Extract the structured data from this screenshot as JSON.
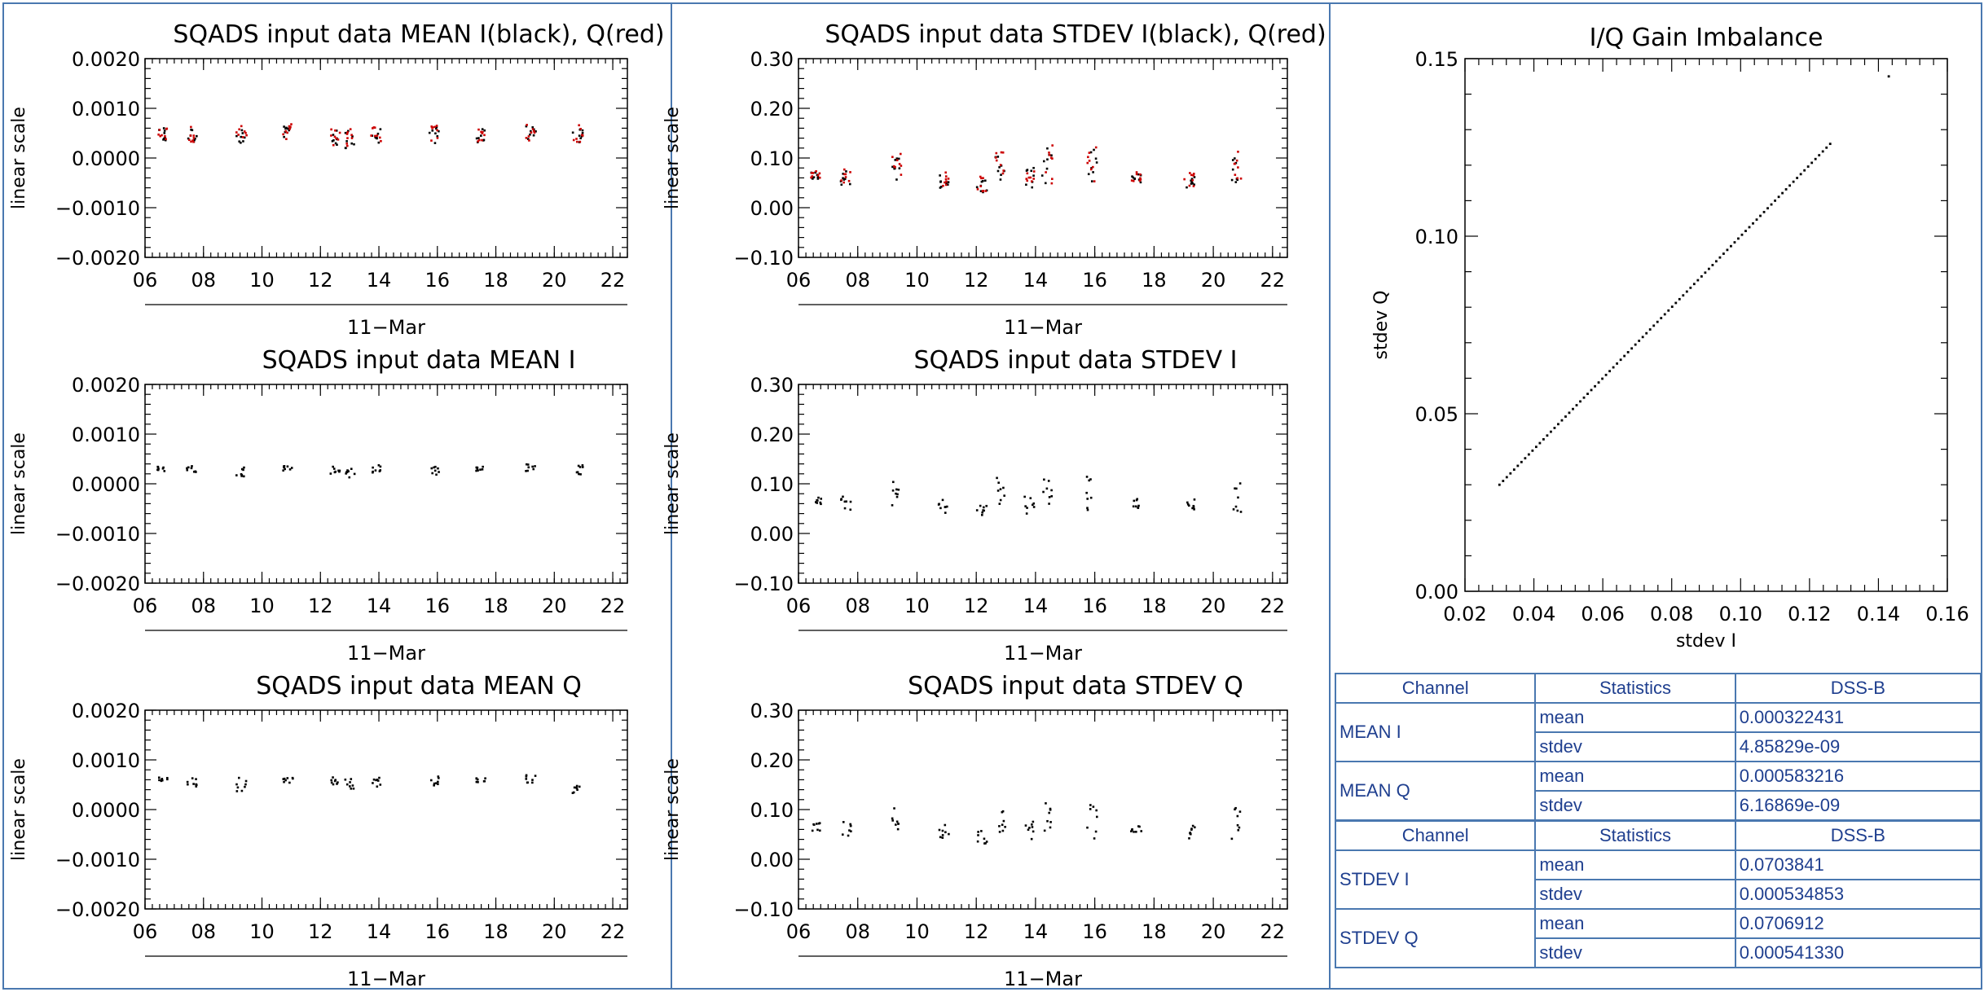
{
  "chart_data": [
    {
      "id": "mean_iq",
      "type": "scatter",
      "title": "SQADS input data MEAN I(black), Q(red)",
      "ylabel": "linear scale",
      "xlabel": "11−Mar",
      "ylim": [
        -0.002,
        0.002
      ],
      "yticks": [
        -0.002,
        -0.001,
        0.0,
        0.001,
        0.002
      ],
      "yticklabels": [
        "−0.0020",
        "−0.0010",
        "0.0000",
        "0.0010",
        "0.0020"
      ],
      "xlim": [
        6,
        22.5
      ],
      "xticks": [
        6,
        8,
        10,
        12,
        14,
        16,
        18,
        20,
        22
      ],
      "xticklabels": [
        "06",
        "08",
        "10",
        "12",
        "14",
        "16",
        "18",
        "20",
        "22"
      ],
      "clusters": [
        {
          "x": 6.6,
          "center": 0.00045,
          "spread": 0.00015
        },
        {
          "x": 7.6,
          "center": 0.00045,
          "spread": 0.00016
        },
        {
          "x": 9.3,
          "center": 0.00042,
          "spread": 0.0002
        },
        {
          "x": 10.9,
          "center": 0.0005,
          "spread": 0.00015
        },
        {
          "x": 12.5,
          "center": 0.0004,
          "spread": 0.00018
        },
        {
          "x": 13.0,
          "center": 0.00035,
          "spread": 0.0002
        },
        {
          "x": 13.9,
          "center": 0.00045,
          "spread": 0.00015
        },
        {
          "x": 15.9,
          "center": 0.00045,
          "spread": 0.00018
        },
        {
          "x": 17.5,
          "center": 0.00045,
          "spread": 0.00016
        },
        {
          "x": 19.2,
          "center": 0.00048,
          "spread": 0.00016
        },
        {
          "x": 20.8,
          "center": 0.00045,
          "spread": 0.00018
        }
      ],
      "colors": [
        "#000000",
        "#cc0000"
      ]
    },
    {
      "id": "stdev_iq",
      "type": "scatter",
      "title": "SQADS input data STDEV I(black), Q(red)",
      "ylabel": "linear scale",
      "xlabel": "11−Mar",
      "ylim": [
        -0.1,
        0.3
      ],
      "yticks": [
        -0.1,
        0.0,
        0.1,
        0.2,
        0.3
      ],
      "yticklabels": [
        "−0.10",
        "0.00",
        "0.10",
        "0.20",
        "0.30"
      ],
      "xlim": [
        6,
        22.5
      ],
      "xticks": [
        6,
        8,
        10,
        12,
        14,
        16,
        18,
        20,
        22
      ],
      "xticklabels": [
        "06",
        "08",
        "10",
        "12",
        "14",
        "16",
        "18",
        "20",
        "22"
      ],
      "clusters": [
        {
          "x": 6.6,
          "center": 0.065,
          "spread": 0.008
        },
        {
          "x": 7.6,
          "center": 0.06,
          "spread": 0.015
        },
        {
          "x": 9.3,
          "center": 0.08,
          "spread": 0.025
        },
        {
          "x": 10.9,
          "center": 0.055,
          "spread": 0.015
        },
        {
          "x": 12.2,
          "center": 0.045,
          "spread": 0.015
        },
        {
          "x": 12.8,
          "center": 0.085,
          "spread": 0.03
        },
        {
          "x": 13.8,
          "center": 0.06,
          "spread": 0.02
        },
        {
          "x": 14.4,
          "center": 0.08,
          "spread": 0.04
        },
        {
          "x": 15.9,
          "center": 0.08,
          "spread": 0.04
        },
        {
          "x": 17.4,
          "center": 0.06,
          "spread": 0.01
        },
        {
          "x": 19.2,
          "center": 0.055,
          "spread": 0.015
        },
        {
          "x": 20.8,
          "center": 0.075,
          "spread": 0.035
        }
      ],
      "colors": [
        "#000000",
        "#cc0000"
      ]
    },
    {
      "id": "mean_i",
      "type": "scatter",
      "title": "SQADS input data MEAN I",
      "ylabel": "linear scale",
      "xlabel": "11−Mar",
      "ylim": [
        -0.002,
        0.002
      ],
      "yticks": [
        -0.002,
        -0.001,
        0.0,
        0.001,
        0.002
      ],
      "yticklabels": [
        "−0.0020",
        "−0.0010",
        "0.0000",
        "0.0010",
        "0.0020"
      ],
      "xlim": [
        6,
        22.5
      ],
      "xticks": [
        6,
        8,
        10,
        12,
        14,
        16,
        18,
        20,
        22
      ],
      "xticklabels": [
        "06",
        "08",
        "10",
        "12",
        "14",
        "16",
        "18",
        "20",
        "22"
      ],
      "clusters": [
        {
          "x": 6.6,
          "center": 0.0003,
          "spread": 5e-05
        },
        {
          "x": 7.6,
          "center": 0.0003,
          "spread": 8e-05
        },
        {
          "x": 9.3,
          "center": 0.00025,
          "spread": 0.0001
        },
        {
          "x": 10.9,
          "center": 0.00032,
          "spread": 6e-05
        },
        {
          "x": 12.5,
          "center": 0.00028,
          "spread": 8e-05
        },
        {
          "x": 13.0,
          "center": 0.00022,
          "spread": 0.0001
        },
        {
          "x": 13.9,
          "center": 0.0003,
          "spread": 8e-05
        },
        {
          "x": 15.9,
          "center": 0.00028,
          "spread": 0.0001
        },
        {
          "x": 17.5,
          "center": 0.0003,
          "spread": 5e-05
        },
        {
          "x": 19.2,
          "center": 0.00033,
          "spread": 8e-05
        },
        {
          "x": 20.8,
          "center": 0.00028,
          "spread": 0.0001
        }
      ],
      "colors": [
        "#000000"
      ]
    },
    {
      "id": "stdev_i",
      "type": "scatter",
      "title": "SQADS input data STDEV I",
      "ylabel": "linear scale",
      "xlabel": "11−Mar",
      "ylim": [
        -0.1,
        0.3
      ],
      "yticks": [
        -0.1,
        0.0,
        0.1,
        0.2,
        0.3
      ],
      "yticklabels": [
        "−0.10",
        "0.00",
        "0.10",
        "0.20",
        "0.30"
      ],
      "xlim": [
        6,
        22.5
      ],
      "xticks": [
        6,
        8,
        10,
        12,
        14,
        16,
        18,
        20,
        22
      ],
      "xticklabels": [
        "06",
        "08",
        "10",
        "12",
        "14",
        "16",
        "18",
        "20",
        "22"
      ],
      "clusters": [
        {
          "x": 6.6,
          "center": 0.065,
          "spread": 0.008
        },
        {
          "x": 7.6,
          "center": 0.06,
          "spread": 0.015
        },
        {
          "x": 9.3,
          "center": 0.08,
          "spread": 0.025
        },
        {
          "x": 10.9,
          "center": 0.055,
          "spread": 0.015
        },
        {
          "x": 12.2,
          "center": 0.045,
          "spread": 0.015
        },
        {
          "x": 12.8,
          "center": 0.085,
          "spread": 0.03
        },
        {
          "x": 13.8,
          "center": 0.06,
          "spread": 0.02
        },
        {
          "x": 14.4,
          "center": 0.08,
          "spread": 0.04
        },
        {
          "x": 15.9,
          "center": 0.08,
          "spread": 0.04
        },
        {
          "x": 17.4,
          "center": 0.06,
          "spread": 0.01
        },
        {
          "x": 19.2,
          "center": 0.055,
          "spread": 0.015
        },
        {
          "x": 20.8,
          "center": 0.075,
          "spread": 0.035
        }
      ],
      "colors": [
        "#000000"
      ]
    },
    {
      "id": "mean_q",
      "type": "scatter",
      "title": "SQADS input data MEAN Q",
      "ylabel": "linear scale",
      "xlabel": "11−Mar",
      "ylim": [
        -0.002,
        0.002
      ],
      "yticks": [
        -0.002,
        -0.001,
        0.0,
        0.001,
        0.002
      ],
      "yticklabels": [
        "−0.0020",
        "−0.0010",
        "0.0000",
        "0.0010",
        "0.0020"
      ],
      "xlim": [
        6,
        22.5
      ],
      "xticks": [
        6,
        8,
        10,
        12,
        14,
        16,
        18,
        20,
        22
      ],
      "xticklabels": [
        "06",
        "08",
        "10",
        "12",
        "14",
        "16",
        "18",
        "20",
        "22"
      ],
      "clusters": [
        {
          "x": 6.6,
          "center": 0.0006,
          "spread": 6e-05
        },
        {
          "x": 7.6,
          "center": 0.00055,
          "spread": 0.0001
        },
        {
          "x": 9.3,
          "center": 0.0005,
          "spread": 0.00015
        },
        {
          "x": 10.9,
          "center": 0.0006,
          "spread": 6e-05
        },
        {
          "x": 12.5,
          "center": 0.00058,
          "spread": 8e-05
        },
        {
          "x": 13.0,
          "center": 0.00052,
          "spread": 0.0001
        },
        {
          "x": 13.9,
          "center": 0.00055,
          "spread": 0.0001
        },
        {
          "x": 15.9,
          "center": 0.00058,
          "spread": 0.0001
        },
        {
          "x": 17.5,
          "center": 0.0006,
          "spread": 5e-05
        },
        {
          "x": 19.2,
          "center": 0.00062,
          "spread": 8e-05
        },
        {
          "x": 20.8,
          "center": 0.00045,
          "spread": 0.00018
        }
      ],
      "colors": [
        "#000000"
      ]
    },
    {
      "id": "stdev_q",
      "type": "scatter",
      "title": "SQADS input data STDEV Q",
      "ylabel": "linear scale",
      "xlabel": "11−Mar",
      "ylim": [
        -0.1,
        0.3
      ],
      "yticks": [
        -0.1,
        0.0,
        0.1,
        0.2,
        0.3
      ],
      "yticklabels": [
        "−0.10",
        "0.00",
        "0.10",
        "0.20",
        "0.30"
      ],
      "xlim": [
        6,
        22.5
      ],
      "xticks": [
        6,
        8,
        10,
        12,
        14,
        16,
        18,
        20,
        22
      ],
      "xticklabels": [
        "06",
        "08",
        "10",
        "12",
        "14",
        "16",
        "18",
        "20",
        "22"
      ],
      "clusters": [
        {
          "x": 6.6,
          "center": 0.065,
          "spread": 0.008
        },
        {
          "x": 7.6,
          "center": 0.06,
          "spread": 0.015
        },
        {
          "x": 9.3,
          "center": 0.08,
          "spread": 0.025
        },
        {
          "x": 10.9,
          "center": 0.055,
          "spread": 0.015
        },
        {
          "x": 12.2,
          "center": 0.045,
          "spread": 0.015
        },
        {
          "x": 12.8,
          "center": 0.085,
          "spread": 0.03
        },
        {
          "x": 13.8,
          "center": 0.06,
          "spread": 0.02
        },
        {
          "x": 14.4,
          "center": 0.08,
          "spread": 0.04
        },
        {
          "x": 15.9,
          "center": 0.08,
          "spread": 0.04
        },
        {
          "x": 17.4,
          "center": 0.06,
          "spread": 0.01
        },
        {
          "x": 19.2,
          "center": 0.055,
          "spread": 0.015
        },
        {
          "x": 20.8,
          "center": 0.075,
          "spread": 0.035
        }
      ],
      "colors": [
        "#000000"
      ]
    },
    {
      "id": "gain_imbalance",
      "type": "scatter",
      "title": "I/Q Gain Imbalance",
      "xlabel": "stdev I",
      "ylabel": "stdev Q",
      "xlim": [
        0.02,
        0.16
      ],
      "ylim": [
        0.0,
        0.15
      ],
      "xticks": [
        0.02,
        0.04,
        0.06,
        0.08,
        0.1,
        0.12,
        0.14,
        0.16
      ],
      "xticklabels": [
        "0.02",
        "0.04",
        "0.06",
        "0.08",
        "0.10",
        "0.12",
        "0.14",
        "0.16"
      ],
      "yticks": [
        0.0,
        0.05,
        0.1,
        0.15
      ],
      "yticklabels": [
        "0.00",
        "0.05",
        "0.10",
        "0.15"
      ],
      "line_points": {
        "x_start": 0.03,
        "x_end": 0.126,
        "slope": 1.0,
        "outlier": [
          0.143,
          0.145
        ]
      }
    }
  ],
  "table1": {
    "headers": [
      "Channel",
      "Statistics",
      "DSS-B"
    ],
    "rows": [
      {
        "channel": "MEAN I",
        "mean_label": "mean",
        "mean": "0.000322431",
        "stdev_label": "stdev",
        "stdev": "4.85829e-09"
      },
      {
        "channel": "MEAN Q",
        "mean_label": "mean",
        "mean": "0.000583216",
        "stdev_label": "stdev",
        "stdev": "6.16869e-09"
      }
    ]
  },
  "table2": {
    "headers": [
      "Channel",
      "Statistics",
      "DSS-B"
    ],
    "rows": [
      {
        "channel": "STDEV I",
        "mean_label": "mean",
        "mean": "0.0703841",
        "stdev_label": "stdev",
        "stdev": "0.000534853"
      },
      {
        "channel": "STDEV Q",
        "mean_label": "mean",
        "mean": "0.0706912",
        "stdev_label": "stdev",
        "stdev": "0.000541330"
      }
    ]
  }
}
